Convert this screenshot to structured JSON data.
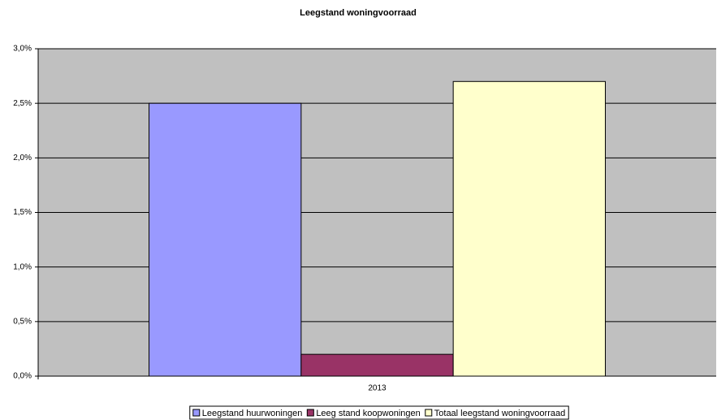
{
  "chart_data": {
    "type": "bar",
    "title": "Leegstand woningvoorraad",
    "categories": [
      "2013"
    ],
    "series": [
      {
        "name": "Leegstand huurwoningen",
        "color": "#9999ff",
        "values": [
          2.5
        ]
      },
      {
        "name": "Leeg stand koopwoningen",
        "color": "#993366",
        "values": [
          0.2
        ]
      },
      {
        "name": "Totaal leegstand woningvoorraad",
        "color": "#ffffcc",
        "values": [
          2.7
        ]
      }
    ],
    "ylim": [
      0,
      3
    ],
    "yticks": [
      {
        "value": 0,
        "label": "0,0%"
      },
      {
        "value": 0.5,
        "label": "0,5%"
      },
      {
        "value": 1,
        "label": "1,0%"
      },
      {
        "value": 1.5,
        "label": "1,5%"
      },
      {
        "value": 2,
        "label": "2,0%"
      },
      {
        "value": 2.5,
        "label": "2,5%"
      },
      {
        "value": 3,
        "label": "3,0%"
      }
    ],
    "grid": true,
    "plot_background": "#c0c0c0",
    "legend": "bottom"
  }
}
